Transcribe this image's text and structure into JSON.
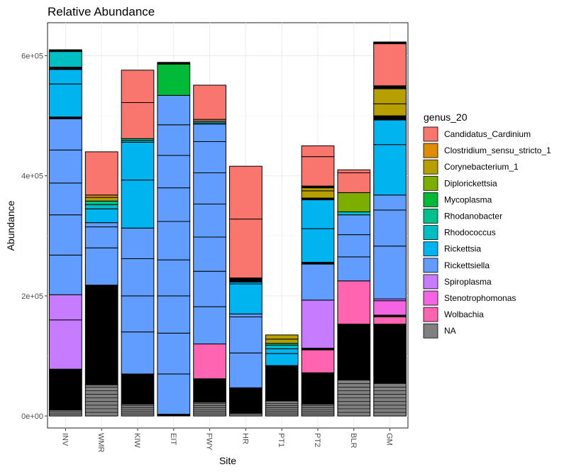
{
  "chart_data": {
    "type": "bar",
    "stacked": true,
    "title": "Relative Abundance",
    "xlabel": "Site",
    "ylabel": "Abundance",
    "ylim": [
      -20000,
      655000
    ],
    "yticks": [
      0,
      200000,
      400000,
      600000
    ],
    "ytick_labels": [
      "0e+00",
      "2e+05",
      "4e+05",
      "6e+05"
    ],
    "grid": true,
    "legend_title": "genus_20",
    "legend_position": "right",
    "categories": [
      "INV",
      "WMR",
      "KIW",
      "EIT",
      "FWY",
      "HR",
      "PT1",
      "PT2",
      "BLR",
      "GM"
    ],
    "legend": [
      {
        "name": "Candidatus_Cardinium",
        "color": "#F8766D"
      },
      {
        "name": "Clostridium_sensu_stricto_1",
        "color": "#DE8C00"
      },
      {
        "name": "Corynebacterium_1",
        "color": "#B79F00"
      },
      {
        "name": "Diplorickettsia",
        "color": "#7CAE00"
      },
      {
        "name": "Mycoplasma",
        "color": "#00BA38"
      },
      {
        "name": "Rhodanobacter",
        "color": "#00C08B"
      },
      {
        "name": "Rhodococcus",
        "color": "#00BFC4"
      },
      {
        "name": "Rickettsia",
        "color": "#00B4F0"
      },
      {
        "name": "Rickettsiella",
        "color": "#619CFF"
      },
      {
        "name": "Spiroplasma",
        "color": "#C77CFF"
      },
      {
        "name": "Stenotrophomonas",
        "color": "#F564E3"
      },
      {
        "name": "Wolbachia",
        "color": "#FF64B0"
      },
      {
        "name": "NA",
        "color": "#808080"
      }
    ],
    "segment_colors": {
      "NA": "#808080",
      "black": "#000000",
      "Wolbachia": "#FF64B0",
      "Stenotrophomonas": "#F564E3",
      "Spiroplasma": "#C77CFF",
      "Rickettsiella": "#619CFF",
      "Rickettsia": "#00B4F0",
      "Rhodococcus": "#00BFC4",
      "Rhodanobacter": "#00C08B",
      "Mycoplasma": "#00BA38",
      "Diplorickettsia": "#7CAE00",
      "Corynebacterium_1": "#B79F00",
      "Clostridium_sensu_stricto_1": "#DE8C00",
      "Candidatus_Cardinium": "#F8766D"
    },
    "bars": [
      {
        "site": "INV",
        "segments": [
          {
            "g": "NA",
            "v": [
              0,
              10000
            ]
          },
          {
            "g": "black",
            "v": [
              10000,
              78000
            ]
          },
          {
            "g": "Spiroplasma",
            "v": [
              78000,
              160000
            ]
          },
          {
            "g": "Spiroplasma",
            "v": [
              160000,
              202000
            ]
          },
          {
            "g": "Rickettsiella",
            "v": [
              202000,
              268000
            ]
          },
          {
            "g": "Rickettsiella",
            "v": [
              268000,
              335000
            ]
          },
          {
            "g": "Rickettsiella",
            "v": [
              335000,
              388000
            ]
          },
          {
            "g": "Rickettsiella",
            "v": [
              388000,
              443000
            ]
          },
          {
            "g": "Rickettsiella",
            "v": [
              443000,
              495000
            ]
          },
          {
            "g": "black",
            "v": [
              495000,
              498000
            ]
          },
          {
            "g": "Rickettsia",
            "v": [
              498000,
              553000
            ]
          },
          {
            "g": "Rickettsia",
            "v": [
              553000,
              577000
            ]
          },
          {
            "g": "black",
            "v": [
              577000,
              581000
            ]
          },
          {
            "g": "Rhodococcus",
            "v": [
              581000,
              607000
            ]
          },
          {
            "g": "black",
            "v": [
              607000,
              610000
            ]
          }
        ]
      },
      {
        "site": "WMR",
        "segments": [
          {
            "g": "NA",
            "v": [
              0,
              52000
            ]
          },
          {
            "g": "black",
            "v": [
              52000,
              218000
            ]
          },
          {
            "g": "Rickettsiella",
            "v": [
              218000,
              280000
            ]
          },
          {
            "g": "Rickettsiella",
            "v": [
              280000,
              315000
            ]
          },
          {
            "g": "Rickettsiella",
            "v": [
              315000,
              322000
            ]
          },
          {
            "g": "Rickettsia",
            "v": [
              322000,
              345000
            ]
          },
          {
            "g": "Rhodococcus",
            "v": [
              345000,
              352000
            ]
          },
          {
            "g": "Rhodanobacter",
            "v": [
              352000,
              358000
            ]
          },
          {
            "g": "Corynebacterium_1",
            "v": [
              358000,
              364000
            ]
          },
          {
            "g": "Clostridium_sensu_stricto_1",
            "v": [
              364000,
              368000
            ]
          },
          {
            "g": "Candidatus_Cardinium",
            "v": [
              368000,
              440000
            ]
          }
        ]
      },
      {
        "site": "KIW",
        "segments": [
          {
            "g": "NA",
            "v": [
              0,
              20000
            ]
          },
          {
            "g": "black",
            "v": [
              20000,
              70000
            ]
          },
          {
            "g": "Rickettsiella",
            "v": [
              70000,
              140000
            ]
          },
          {
            "g": "Rickettsiella",
            "v": [
              140000,
              200000
            ]
          },
          {
            "g": "Rickettsiella",
            "v": [
              200000,
              262000
            ]
          },
          {
            "g": "Rickettsiella",
            "v": [
              262000,
              313000
            ]
          },
          {
            "g": "Rickettsia",
            "v": [
              313000,
              393000
            ]
          },
          {
            "g": "Rickettsia",
            "v": [
              393000,
              456000
            ]
          },
          {
            "g": "Rhodococcus",
            "v": [
              456000,
              459000
            ]
          },
          {
            "g": "Rhodanobacter",
            "v": [
              459000,
              462000
            ]
          },
          {
            "g": "Candidatus_Cardinium",
            "v": [
              462000,
              522000
            ]
          },
          {
            "g": "Candidatus_Cardinium",
            "v": [
              522000,
              576000
            ]
          }
        ]
      },
      {
        "site": "EIT",
        "segments": [
          {
            "g": "black",
            "v": [
              0,
              3000
            ]
          },
          {
            "g": "Rickettsiella",
            "v": [
              3000,
              70000
            ]
          },
          {
            "g": "Rickettsiella",
            "v": [
              70000,
              138000
            ]
          },
          {
            "g": "Rickettsiella",
            "v": [
              138000,
              200000
            ]
          },
          {
            "g": "Rickettsiella",
            "v": [
              200000,
              260000
            ]
          },
          {
            "g": "Rickettsiella",
            "v": [
              260000,
              324000
            ]
          },
          {
            "g": "Rickettsiella",
            "v": [
              324000,
              380000
            ]
          },
          {
            "g": "Rickettsiella",
            "v": [
              380000,
              434000
            ]
          },
          {
            "g": "Rickettsiella",
            "v": [
              434000,
              485000
            ]
          },
          {
            "g": "Rickettsiella",
            "v": [
              485000,
              534000
            ]
          },
          {
            "g": "Mycoplasma",
            "v": [
              534000,
              586000
            ]
          },
          {
            "g": "black",
            "v": [
              586000,
              589000
            ]
          }
        ]
      },
      {
        "site": "FWY",
        "segments": [
          {
            "g": "NA",
            "v": [
              0,
              23000
            ]
          },
          {
            "g": "black",
            "v": [
              23000,
              62000
            ]
          },
          {
            "g": "Wolbachia",
            "v": [
              62000,
              120000
            ]
          },
          {
            "g": "Rickettsiella",
            "v": [
              120000,
              182000
            ]
          },
          {
            "g": "Rickettsiella",
            "v": [
              182000,
              241000
            ]
          },
          {
            "g": "Rickettsiella",
            "v": [
              241000,
              298000
            ]
          },
          {
            "g": "Rickettsiella",
            "v": [
              298000,
              353000
            ]
          },
          {
            "g": "Rickettsiella",
            "v": [
              353000,
              405000
            ]
          },
          {
            "g": "Rickettsiella",
            "v": [
              405000,
              457000
            ]
          },
          {
            "g": "Rickettsiella",
            "v": [
              457000,
              486000
            ]
          },
          {
            "g": "Rickettsia",
            "v": [
              486000,
              488000
            ]
          },
          {
            "g": "Rhodanobacter",
            "v": [
              488000,
              491000
            ]
          },
          {
            "g": "Candidatus_Cardinium",
            "v": [
              491000,
              494000
            ]
          },
          {
            "g": "Candidatus_Cardinium",
            "v": [
              494000,
              551000
            ]
          }
        ]
      },
      {
        "site": "HR",
        "segments": [
          {
            "g": "NA",
            "v": [
              0,
              5000
            ]
          },
          {
            "g": "black",
            "v": [
              5000,
              47000
            ]
          },
          {
            "g": "Rickettsiella",
            "v": [
              47000,
              105000
            ]
          },
          {
            "g": "Rickettsiella",
            "v": [
              105000,
              165000
            ]
          },
          {
            "g": "Rickettsiella",
            "v": [
              165000,
              170000
            ]
          },
          {
            "g": "Rickettsia",
            "v": [
              170000,
              220000
            ]
          },
          {
            "g": "Rickettsia",
            "v": [
              220000,
              223000
            ]
          },
          {
            "g": "black",
            "v": [
              223000,
              230000
            ]
          },
          {
            "g": "Candidatus_Cardinium",
            "v": [
              230000,
              328000
            ]
          },
          {
            "g": "Candidatus_Cardinium",
            "v": [
              328000,
              416000
            ]
          }
        ]
      },
      {
        "site": "PT1",
        "segments": [
          {
            "g": "NA",
            "v": [
              0,
              25000
            ]
          },
          {
            "g": "black",
            "v": [
              25000,
              84000
            ]
          },
          {
            "g": "Rickettsia",
            "v": [
              84000,
              104000
            ]
          },
          {
            "g": "Rickettsia",
            "v": [
              104000,
              112000
            ]
          },
          {
            "g": "Rhodococcus",
            "v": [
              112000,
              118000
            ]
          },
          {
            "g": "Rhodanobacter",
            "v": [
              118000,
              121000
            ]
          },
          {
            "g": "Corynebacterium_1",
            "v": [
              121000,
              128000
            ]
          },
          {
            "g": "Corynebacterium_1",
            "v": [
              128000,
              135000
            ]
          }
        ]
      },
      {
        "site": "PT2",
        "segments": [
          {
            "g": "NA",
            "v": [
              0,
              20000
            ]
          },
          {
            "g": "black",
            "v": [
              20000,
              72000
            ]
          },
          {
            "g": "Wolbachia",
            "v": [
              72000,
              110000
            ]
          },
          {
            "g": "black",
            "v": [
              110000,
              113000
            ]
          },
          {
            "g": "Spiroplasma",
            "v": [
              113000,
              193000
            ]
          },
          {
            "g": "Rickettsiella",
            "v": [
              193000,
              253000
            ]
          },
          {
            "g": "black",
            "v": [
              253000,
              256000
            ]
          },
          {
            "g": "Rickettsia",
            "v": [
              256000,
              312000
            ]
          },
          {
            "g": "Rickettsia",
            "v": [
              312000,
              360000
            ]
          },
          {
            "g": "black",
            "v": [
              360000,
              363000
            ]
          },
          {
            "g": "Corynebacterium_1",
            "v": [
              363000,
              375000
            ]
          },
          {
            "g": "Corynebacterium_1",
            "v": [
              375000,
              380000
            ]
          },
          {
            "g": "black",
            "v": [
              380000,
              383000
            ]
          },
          {
            "g": "Candidatus_Cardinium",
            "v": [
              383000,
              432000
            ]
          },
          {
            "g": "Candidatus_Cardinium",
            "v": [
              432000,
              450000
            ]
          }
        ]
      },
      {
        "site": "BLR",
        "segments": [
          {
            "g": "NA",
            "v": [
              0,
              60000
            ]
          },
          {
            "g": "black",
            "v": [
              60000,
              153000
            ]
          },
          {
            "g": "Wolbachia",
            "v": [
              153000,
              225000
            ]
          },
          {
            "g": "Rickettsiella",
            "v": [
              225000,
              265000
            ]
          },
          {
            "g": "Rickettsiella",
            "v": [
              265000,
              302000
            ]
          },
          {
            "g": "Rickettsiella",
            "v": [
              302000,
              335000
            ]
          },
          {
            "g": "Rhodococcus",
            "v": [
              335000,
              340000
            ]
          },
          {
            "g": "Diplorickettsia",
            "v": [
              340000,
              372000
            ]
          },
          {
            "g": "Candidatus_Cardinium",
            "v": [
              372000,
              405000
            ]
          },
          {
            "g": "Candidatus_Cardinium",
            "v": [
              405000,
              410000
            ]
          }
        ]
      },
      {
        "site": "GM",
        "segments": [
          {
            "g": "NA",
            "v": [
              0,
              55000
            ]
          },
          {
            "g": "black",
            "v": [
              55000,
              153000
            ]
          },
          {
            "g": "Wolbachia",
            "v": [
              153000,
              165000
            ]
          },
          {
            "g": "black",
            "v": [
              165000,
              168000
            ]
          },
          {
            "g": "Stenotrophomonas",
            "v": [
              168000,
              192000
            ]
          },
          {
            "g": "Spiroplasma",
            "v": [
              192000,
              195000
            ]
          },
          {
            "g": "Rickettsiella",
            "v": [
              195000,
              283000
            ]
          },
          {
            "g": "Rickettsiella",
            "v": [
              283000,
              343000
            ]
          },
          {
            "g": "Rickettsiella",
            "v": [
              343000,
              368000
            ]
          },
          {
            "g": "Rickettsia",
            "v": [
              368000,
              452000
            ]
          },
          {
            "g": "Rickettsia",
            "v": [
              452000,
              493000
            ]
          },
          {
            "g": "black",
            "v": [
              493000,
              500000
            ]
          },
          {
            "g": "Corynebacterium_1",
            "v": [
              500000,
              520000
            ]
          },
          {
            "g": "Corynebacterium_1",
            "v": [
              520000,
              545000
            ]
          },
          {
            "g": "black",
            "v": [
              545000,
              550000
            ]
          },
          {
            "g": "Candidatus_Cardinium",
            "v": [
              550000,
              620000
            ]
          },
          {
            "g": "black",
            "v": [
              620000,
              623000
            ]
          }
        ]
      }
    ]
  }
}
